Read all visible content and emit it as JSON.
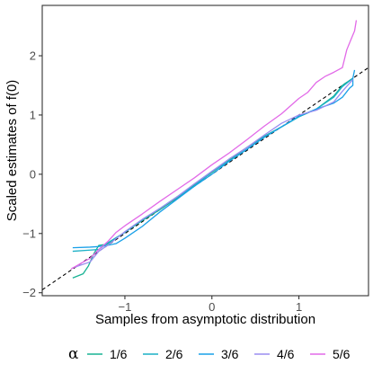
{
  "chart_data": {
    "type": "line",
    "xlabel": "Samples from asymptotic distribution",
    "ylabel": "Scaled estimates of f(0)",
    "xlim": [
      -1.95,
      1.8
    ],
    "ylim": [
      -2.05,
      2.85
    ],
    "x_ticks": [
      -1,
      0,
      1
    ],
    "x_tick_labels": [
      "−1",
      "0",
      "1"
    ],
    "y_ticks": [
      -2,
      -1,
      0,
      1,
      2
    ],
    "y_tick_labels": [
      "−2",
      "−1",
      "0",
      "1",
      "2"
    ],
    "grid": false,
    "legend": {
      "title": "α",
      "position": "bottom"
    },
    "reference_line": {
      "style": "dashed",
      "color": "#000000",
      "slope": 1,
      "intercept": 0
    },
    "series": [
      {
        "name": "1/6",
        "color": "#19b394",
        "x": [
          -1.6,
          -1.48,
          -1.42,
          -1.36,
          -1.3,
          -1.2,
          -1.1,
          -1.0,
          -0.8,
          -0.6,
          -0.4,
          -0.2,
          0.0,
          0.2,
          0.4,
          0.6,
          0.8,
          1.0,
          1.2,
          1.4,
          1.5,
          1.62
        ],
        "y": [
          -1.75,
          -1.68,
          -1.55,
          -1.35,
          -1.2,
          -1.18,
          -1.08,
          -0.98,
          -0.78,
          -0.6,
          -0.4,
          -0.18,
          0.03,
          0.24,
          0.45,
          0.64,
          0.8,
          0.97,
          1.1,
          1.32,
          1.5,
          1.62
        ]
      },
      {
        "name": "2/6",
        "color": "#1ab0c6",
        "x": [
          -1.6,
          -1.4,
          -1.3,
          -1.2,
          -1.0,
          -0.8,
          -0.6,
          -0.4,
          -0.2,
          0.0,
          0.2,
          0.4,
          0.6,
          0.8,
          1.0,
          1.2,
          1.4,
          1.5,
          1.62
        ],
        "y": [
          -1.3,
          -1.28,
          -1.27,
          -1.16,
          -0.98,
          -0.77,
          -0.58,
          -0.38,
          -0.2,
          0.05,
          0.22,
          0.42,
          0.63,
          0.8,
          0.97,
          1.1,
          1.3,
          1.48,
          1.62
        ]
      },
      {
        "name": "3/6",
        "color": "#19a0e8",
        "x": [
          -1.6,
          -1.4,
          -1.3,
          -1.2,
          -1.1,
          -1.0,
          -0.8,
          -0.6,
          -0.4,
          -0.2,
          0.0,
          0.2,
          0.4,
          0.6,
          0.8,
          1.0,
          1.2,
          1.4,
          1.5,
          1.58,
          1.62,
          1.62,
          1.64
        ],
        "y": [
          -1.24,
          -1.23,
          -1.22,
          -1.2,
          -1.17,
          -1.08,
          -0.88,
          -0.64,
          -0.42,
          -0.2,
          0.0,
          0.22,
          0.42,
          0.62,
          0.8,
          0.98,
          1.1,
          1.2,
          1.3,
          1.45,
          1.5,
          1.62,
          1.76
        ]
      },
      {
        "name": "4/6",
        "color": "#9a8df0",
        "x": [
          -1.6,
          -1.4,
          -1.3,
          -1.2,
          -1.0,
          -0.8,
          -0.6,
          -0.4,
          -0.2,
          0.0,
          0.2,
          0.4,
          0.6,
          0.8,
          1.0,
          1.2,
          1.4,
          1.5,
          1.62
        ],
        "y": [
          -1.58,
          -1.48,
          -1.3,
          -1.2,
          -0.97,
          -0.76,
          -0.58,
          -0.38,
          -0.16,
          0.05,
          0.26,
          0.45,
          0.66,
          0.86,
          1.0,
          1.08,
          1.22,
          1.4,
          1.6
        ]
      },
      {
        "name": "5/6",
        "color": "#e26ae8",
        "x": [
          -1.62,
          -1.5,
          -1.4,
          -1.3,
          -1.2,
          -1.1,
          -1.0,
          -0.8,
          -0.6,
          -0.4,
          -0.2,
          0.0,
          0.2,
          0.4,
          0.6,
          0.8,
          1.0,
          1.1,
          1.2,
          1.3,
          1.4,
          1.5,
          1.55,
          1.6,
          1.64,
          1.66
        ],
        "y": [
          -1.6,
          -1.5,
          -1.42,
          -1.27,
          -1.14,
          -0.98,
          -0.87,
          -0.67,
          -0.46,
          -0.26,
          -0.06,
          0.16,
          0.36,
          0.58,
          0.81,
          1.02,
          1.28,
          1.38,
          1.55,
          1.65,
          1.72,
          1.8,
          2.1,
          2.28,
          2.42,
          2.6
        ]
      }
    ]
  }
}
